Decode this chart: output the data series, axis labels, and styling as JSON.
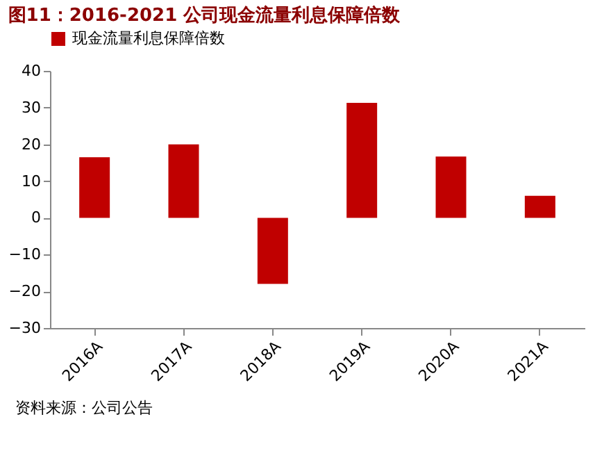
{
  "chart_data": {
    "type": "bar",
    "title": "图11：2016-2021 公司现金流量利息保障倍数",
    "categories": [
      "2016A",
      "2017A",
      "2018A",
      "2019A",
      "2020A",
      "2021A"
    ],
    "series": [
      {
        "name": "现金流量利息保障倍数",
        "color": "#c00000",
        "values": [
          16.5,
          20,
          -18,
          31.3,
          16.7,
          6
        ]
      }
    ],
    "ylim": [
      -30,
      40
    ],
    "yticks": [
      -30,
      -20,
      -10,
      0,
      10,
      20,
      30,
      40
    ],
    "grid": false,
    "legend": "top",
    "annotations": [
      "资料来源：公司公告"
    ]
  }
}
